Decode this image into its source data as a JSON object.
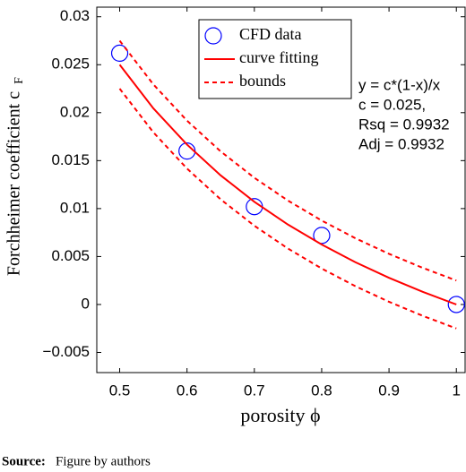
{
  "chart_data": {
    "type": "scatter",
    "y_label": "Forchheimer coefficient c",
    "y_label_subscript": "F",
    "x_label": "porosity ϕ",
    "xlim": [
      0.466,
      1.013
    ],
    "ylim": [
      -0.0071,
      0.031
    ],
    "xticks": [
      0.5,
      0.6,
      0.7,
      0.8,
      0.9,
      1
    ],
    "yticks": [
      {
        "value": -0.005,
        "label": "−0.005"
      },
      0,
      0.005,
      0.01,
      0.015,
      0.02,
      0.025,
      0.03
    ],
    "series": [
      {
        "name": "CFD data",
        "color": "#0000ff",
        "style": "marker",
        "x": [
          0.5,
          0.6,
          0.7,
          0.8,
          1
        ],
        "values": [
          0.0262,
          0.016,
          0.0102,
          0.0072,
          0
        ]
      },
      {
        "name": "curve fitting",
        "color": "#ff0000",
        "style": "solid",
        "x": [
          0.5,
          0.55,
          0.6,
          0.65,
          0.7,
          0.75,
          0.8,
          0.85,
          0.9,
          0.95,
          1
        ],
        "values": [
          0.025,
          0.02045,
          0.01667,
          0.01346,
          0.01071,
          0.00833,
          0.00625,
          0.00441,
          0.00278,
          0.00132,
          0
        ]
      },
      {
        "name": "bounds",
        "color": "#ff0000",
        "style": "dashed",
        "x": [
          0.5,
          0.55,
          0.6,
          0.65,
          0.7,
          0.75,
          0.8,
          0.85,
          0.9,
          0.95,
          1
        ],
        "values": [
          0.0275,
          0.02295,
          0.01917,
          0.01596,
          0.01321,
          0.01083,
          0.00875,
          0.00691,
          0.00528,
          0.00382,
          0.0025
        ],
        "values_lower": [
          0.0225,
          0.01795,
          0.01417,
          0.01096,
          0.00821,
          0.00583,
          0.00375,
          0.00191,
          0.00028,
          -0.00118,
          -0.0025
        ]
      }
    ],
    "annotation": [
      "y = c*(1-x)/x",
      "c = 0.025,",
      "Rsq = 0.9932",
      "Adj = 0.9932"
    ]
  },
  "source": {
    "label": "Source:",
    "text": "Figure by authors"
  }
}
